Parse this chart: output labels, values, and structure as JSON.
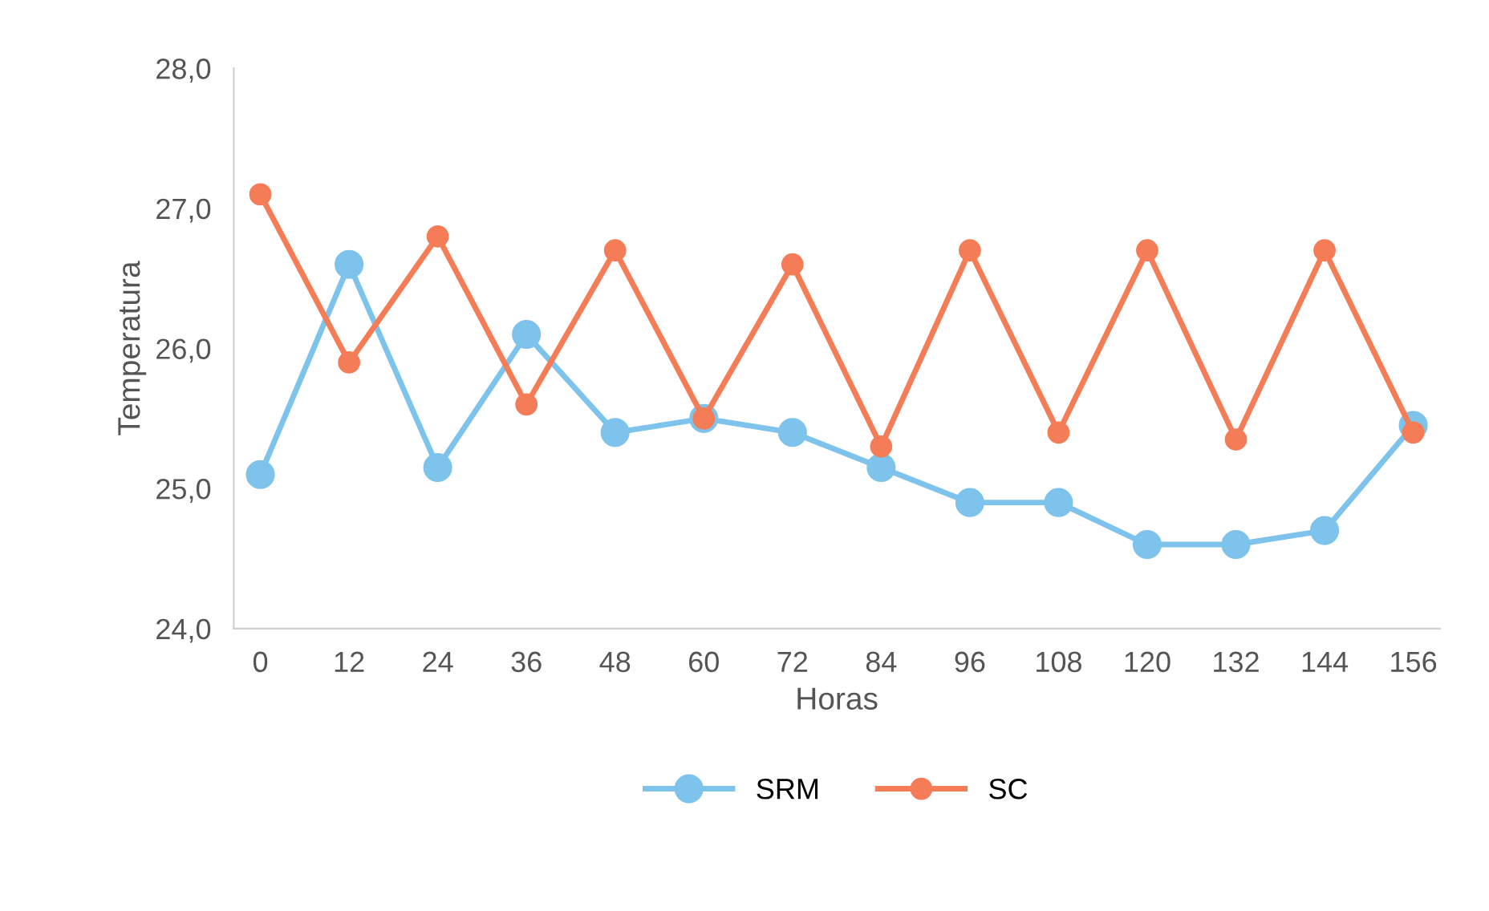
{
  "chart_data": {
    "type": "line",
    "xlabel": "Horas",
    "ylabel": "Temperatura",
    "categories": [
      "0",
      "12",
      "24",
      "36",
      "48",
      "60",
      "72",
      "84",
      "96",
      "108",
      "120",
      "132",
      "144",
      "156"
    ],
    "series": [
      {
        "name": "SRM",
        "color": "#7dc3ec",
        "values": [
          25.1,
          26.6,
          25.15,
          26.1,
          25.4,
          25.5,
          25.4,
          25.15,
          24.9,
          24.9,
          24.6,
          24.6,
          24.7,
          25.45
        ]
      },
      {
        "name": "SC",
        "color": "#f47c57",
        "values": [
          27.1,
          25.9,
          26.8,
          25.6,
          26.7,
          25.5,
          26.6,
          25.3,
          26.7,
          25.4,
          26.7,
          25.35,
          26.7,
          25.4
        ]
      }
    ],
    "ylim": [
      24,
      28
    ],
    "yticks": [
      {
        "value": 24,
        "label": "24,0"
      },
      {
        "value": 25,
        "label": "25,0"
      },
      {
        "value": 26,
        "label": "26,0"
      },
      {
        "value": 27,
        "label": "27,0"
      },
      {
        "value": 28,
        "label": "28,0"
      }
    ],
    "grid": false,
    "legend": "bottom",
    "marker": "circle",
    "line_style": "solid"
  }
}
